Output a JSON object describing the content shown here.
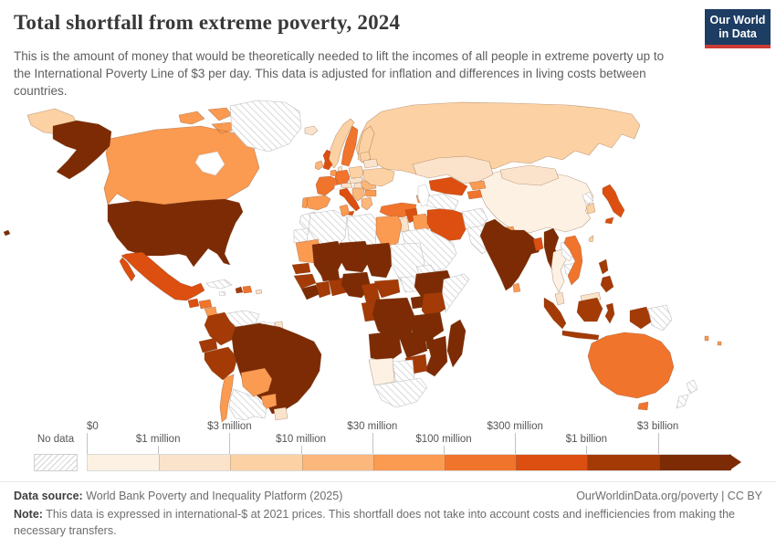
{
  "header": {
    "title": "Total shortfall from extreme poverty, 2024",
    "subtitle": "This is the amount of money that would be theoretically needed to lift the incomes of all people in extreme poverty up to the International Poverty Line of $3 per day. This data is adjusted for inflation and differences in living costs between countries.",
    "logo": {
      "line1": "Our World",
      "line2": "in Data",
      "bg_color": "#1d3d63",
      "bar_color": "#cc3b34"
    }
  },
  "legend": {
    "no_data_label": "No data",
    "tick_labels": [
      "$0",
      "$1 million",
      "$3 million",
      "$10 million",
      "$30 million",
      "$100 million",
      "$300 million",
      "$1 billion",
      "$3 billion"
    ],
    "bin_colors": [
      "#fdf1e3",
      "#fbe3cb",
      "#fcd2a4",
      "#fcb77c",
      "#fb9a51",
      "#f1742c",
      "#dc4f10",
      "#a43a06",
      "#7c2b04"
    ]
  },
  "footer": {
    "datasource_label": "Data source:",
    "datasource_value": " World Bank Poverty and Inequality Platform (2025)",
    "link": "OurWorldinData.org/poverty | CC BY",
    "note_label": "Note:",
    "note_value": " This data is expressed in international-$ at 2021 prices. This shortfall does not take into account costs and inefficiencies from making the necessary transfers."
  },
  "chart_data": {
    "type": "heatmap",
    "subtype": "choropleth world map",
    "title": "Total shortfall from extreme poverty, 2024",
    "year": "2024",
    "unit": "international-$ at 2021 prices",
    "legend_position": "bottom",
    "bin_ranges": [
      "$0–$1 million",
      "$1–$3 million",
      "$3–$10 million",
      "$10–$30 million",
      "$30–$100 million",
      "$100–$300 million",
      "$300 million–$1 billion",
      "$1 billion–$3 billion",
      "$3 billion+"
    ],
    "no_data_style": "diagonal hatch",
    "regions": {
      "greenland": {
        "name": "Greenland",
        "bin": -1
      },
      "iceland": {
        "name": "Iceland",
        "bin": 1
      },
      "norway": {
        "name": "Norway",
        "bin": 2
      },
      "sweden": {
        "name": "Sweden",
        "bin": 5
      },
      "finland": {
        "name": "Finland",
        "bin": 2
      },
      "denmark": {
        "name": "Denmark",
        "bin": 1
      },
      "uk": {
        "name": "United Kingdom",
        "bin": 6
      },
      "ireland": {
        "name": "Ireland",
        "bin": 3
      },
      "france": {
        "name": "France",
        "bin": 5
      },
      "spain": {
        "name": "Spain",
        "bin": 4
      },
      "portugal": {
        "name": "Portugal",
        "bin": 4
      },
      "germany": {
        "name": "Germany",
        "bin": 5
      },
      "benelux": {
        "name": "Belgium & Netherlands",
        "bin": 4
      },
      "switzerland": {
        "name": "Switzerland",
        "bin": -2
      },
      "austria": {
        "name": "Austria",
        "bin": 1
      },
      "italy": {
        "name": "Italy",
        "bin": 6
      },
      "poland": {
        "name": "Poland",
        "bin": 2
      },
      "czech-slovakia": {
        "name": "Czechia & Slovakia",
        "bin": 1
      },
      "hungary": {
        "name": "Hungary",
        "bin": 1
      },
      "balkans": {
        "name": "Western Balkans",
        "bin": 3
      },
      "romania": {
        "name": "Romania",
        "bin": 3
      },
      "bulgaria": {
        "name": "Bulgaria",
        "bin": 4
      },
      "greece": {
        "name": "Greece",
        "bin": 3
      },
      "baltics": {
        "name": "Baltic states",
        "bin": 2
      },
      "belarus": {
        "name": "Belarus",
        "bin": 1
      },
      "ukraine": {
        "name": "Ukraine",
        "bin": 2
      },
      "russia": {
        "name": "Russia",
        "bin": 2
      },
      "kazakhstan": {
        "name": "Kazakhstan",
        "bin": 1
      },
      "uzbekistan": {
        "name": "Uzbekistan",
        "bin": 6
      },
      "turkmenistan": {
        "name": "Turkmenistan",
        "bin": -1
      },
      "kyrgyzstan": {
        "name": "Kyrgyzstan",
        "bin": 4
      },
      "tajikistan": {
        "name": "Tajikistan",
        "bin": 5
      },
      "caucasus": {
        "name": "Caucasus",
        "bin": 4
      },
      "turkey": {
        "name": "Turkey",
        "bin": 5
      },
      "syria": {
        "name": "Syria",
        "bin": 6
      },
      "levant": {
        "name": "Israel & Jordan",
        "bin": 1
      },
      "iraq": {
        "name": "Iraq",
        "bin": 4
      },
      "iran": {
        "name": "Iran",
        "bin": 6
      },
      "arabia": {
        "name": "Arabian Peninsula",
        "bin": -1
      },
      "afghanistan": {
        "name": "Afghanistan",
        "bin": -1
      },
      "pakistan": {
        "name": "Pakistan",
        "bin": -1
      },
      "china": {
        "name": "China",
        "bin": 0
      },
      "mongolia": {
        "name": "Mongolia",
        "bin": 1
      },
      "north-korea": {
        "name": "North Korea",
        "bin": -1
      },
      "south-korea": {
        "name": "South Korea",
        "bin": 2
      },
      "japan": {
        "name": "Japan",
        "bin": 6
      },
      "taiwan": {
        "name": "Taiwan",
        "bin": 2
      },
      "nepal": {
        "name": "Nepal",
        "bin": 4
      },
      "bhutan": {
        "name": "Bhutan",
        "bin": 3
      },
      "india": {
        "name": "India",
        "bin": 8
      },
      "bangladesh": {
        "name": "Bangladesh",
        "bin": 6
      },
      "sri-lanka": {
        "name": "Sri Lanka",
        "bin": 4
      },
      "myanmar": {
        "name": "Myanmar",
        "bin": 8
      },
      "thailand": {
        "name": "Thailand",
        "bin": 0
      },
      "laos": {
        "name": "Laos",
        "bin": -1
      },
      "cambodia": {
        "name": "Cambodia",
        "bin": -1
      },
      "vietnam": {
        "name": "Vietnam",
        "bin": 5
      },
      "malaysia": {
        "name": "Malaysia",
        "bin": 1
      },
      "indonesia": {
        "name": "Indonesia",
        "bin": 7
      },
      "philippines": {
        "name": "Philippines",
        "bin": 7
      },
      "papua-new-guinea": {
        "name": "Papua New Guinea",
        "bin": -1
      },
      "australia": {
        "name": "Australia",
        "bin": 5
      },
      "new-zealand": {
        "name": "New Zealand",
        "bin": -1
      },
      "fiji": {
        "name": "Fiji",
        "bin": 4
      },
      "vanuatu": {
        "name": "Vanuatu",
        "bin": 4
      },
      "hawaii": {
        "name": "Hawaii (United States)",
        "bin": 8
      },
      "canada": {
        "name": "Canada",
        "bin": 4
      },
      "alaska": {
        "name": "Alaska (United States)",
        "bin": 8
      },
      "usa": {
        "name": "United States",
        "bin": 8
      },
      "mexico": {
        "name": "Mexico",
        "bin": 6
      },
      "guatemala": {
        "name": "Guatemala",
        "bin": 6
      },
      "honduras": {
        "name": "Honduras",
        "bin": 5
      },
      "nicaragua": {
        "name": "Nicaragua",
        "bin": 4
      },
      "costa-rica": {
        "name": "Costa Rica",
        "bin": 1
      },
      "panama": {
        "name": "Panama",
        "bin": 6
      },
      "cuba": {
        "name": "Cuba",
        "bin": -1
      },
      "jamaica": {
        "name": "Jamaica",
        "bin": -1
      },
      "haiti": {
        "name": "Haiti",
        "bin": 7
      },
      "dominican-republic": {
        "name": "Dominican Republic",
        "bin": 5
      },
      "puerto-rico": {
        "name": "Puerto Rico",
        "bin": 1
      },
      "venezuela": {
        "name": "Venezuela",
        "bin": -1
      },
      "colombia": {
        "name": "Colombia",
        "bin": 7
      },
      "guyana": {
        "name": "Guyana",
        "bin": -1
      },
      "suriname": {
        "name": "Suriname",
        "bin": -2
      },
      "french-guiana": {
        "name": "French Guiana",
        "bin": 1
      },
      "ecuador": {
        "name": "Ecuador",
        "bin": 7
      },
      "peru": {
        "name": "Peru",
        "bin": 7
      },
      "brazil": {
        "name": "Brazil",
        "bin": 8
      },
      "bolivia": {
        "name": "Bolivia",
        "bin": 4
      },
      "paraguay": {
        "name": "Paraguay",
        "bin": 4
      },
      "uruguay": {
        "name": "Uruguay",
        "bin": 1
      },
      "chile": {
        "name": "Chile",
        "bin": 4
      },
      "argentina": {
        "name": "Argentina",
        "bin": -1
      },
      "morocco": {
        "name": "Morocco",
        "bin": -1
      },
      "western-sahara": {
        "name": "Western Sahara",
        "bin": -1
      },
      "algeria": {
        "name": "Algeria",
        "bin": -1
      },
      "tunisia": {
        "name": "Tunisia",
        "bin": 4
      },
      "libya": {
        "name": "Libya",
        "bin": -1
      },
      "egypt": {
        "name": "Egypt",
        "bin": 4
      },
      "mauritania": {
        "name": "Mauritania",
        "bin": 4
      },
      "mali": {
        "name": "Mali",
        "bin": 8
      },
      "niger": {
        "name": "Niger",
        "bin": 8
      },
      "chad": {
        "name": "Chad",
        "bin": 8
      },
      "sudan": {
        "name": "Sudan",
        "bin": -1
      },
      "eritrea": {
        "name": "Eritrea & Djibouti",
        "bin": -1
      },
      "senegal": {
        "name": "Senegal & Gambia",
        "bin": 7
      },
      "guinea": {
        "name": "Guinea",
        "bin": 7
      },
      "sierra-leone": {
        "name": "Sierra Leone & Liberia",
        "bin": 8
      },
      "cote-divoire": {
        "name": "Côte d'Ivoire",
        "bin": 7
      },
      "ghana": {
        "name": "Ghana, Togo & Benin",
        "bin": 7
      },
      "burkina-faso": {
        "name": "Burkina Faso",
        "bin": 8
      },
      "nigeria": {
        "name": "Nigeria",
        "bin": 8
      },
      "cameroon": {
        "name": "Cameroon",
        "bin": 7
      },
      "car": {
        "name": "Central African Republic",
        "bin": 7
      },
      "south-sudan": {
        "name": "South Sudan",
        "bin": -1
      },
      "ethiopia": {
        "name": "Ethiopia",
        "bin": 8
      },
      "somalia": {
        "name": "Somalia",
        "bin": -1
      },
      "uganda": {
        "name": "Uganda",
        "bin": 8
      },
      "kenya": {
        "name": "Kenya",
        "bin": 7
      },
      "congo": {
        "name": "Congo & Gabon",
        "bin": 7
      },
      "drc": {
        "name": "Democratic Republic of Congo",
        "bin": 8
      },
      "tanzania": {
        "name": "Tanzania",
        "bin": 8
      },
      "angola": {
        "name": "Angola",
        "bin": 8
      },
      "zambia": {
        "name": "Zambia",
        "bin": 8
      },
      "malawi": {
        "name": "Malawi",
        "bin": 8
      },
      "mozambique": {
        "name": "Mozambique",
        "bin": 8
      },
      "zimbabwe": {
        "name": "Zimbabwe",
        "bin": 7
      },
      "madagascar": {
        "name": "Madagascar",
        "bin": 8
      },
      "namibia": {
        "name": "Namibia",
        "bin": 0
      },
      "botswana": {
        "name": "Botswana",
        "bin": -1
      },
      "south-africa": {
        "name": "South Africa",
        "bin": -1
      }
    }
  }
}
